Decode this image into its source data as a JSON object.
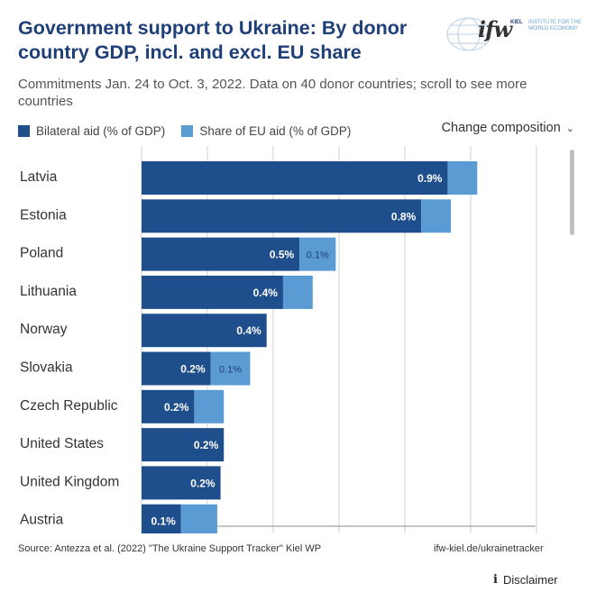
{
  "header": {
    "title": "Government support to Ukraine: By donor country GDP, incl. and excl. EU share",
    "subtitle": "Commitments Jan. 24 to Oct. 3, 2022. Data on 40 donor countries; scroll to see more countries",
    "logo_text": "ifw",
    "logo_kiel": "KIEL",
    "logo_institute": "INSTITUTE FOR THE WORLD ECONOMY"
  },
  "legend": [
    {
      "label": "Bilateral aid (% of GDP)",
      "color": "#1f4e8c"
    },
    {
      "label": "Share of EU aid (% of GDP)",
      "color": "#5a9bd3"
    }
  ],
  "controls": {
    "change_composition": "Change composition",
    "chevron": "⌄"
  },
  "footer": {
    "source": "Source: Antezza et al. (2022) \"The Ukraine Support Tracker\" Kiel WP",
    "url": "ifw-kiel.de/ukrainetracker",
    "disclaimer": "Disclaimer",
    "info_icon": "i"
  },
  "chart_data": {
    "type": "bar",
    "orientation": "horizontal",
    "stacked": true,
    "categories": [
      "Latvia",
      "Estonia",
      "Poland",
      "Lithuania",
      "Norway",
      "Slovakia",
      "Czech Republic",
      "United States",
      "United Kingdom",
      "Austria"
    ],
    "series": [
      {
        "name": "Bilateral aid (% of GDP)",
        "color": "#1f4e8c",
        "values": [
          0.93,
          0.85,
          0.48,
          0.43,
          0.38,
          0.21,
          0.16,
          0.25,
          0.24,
          0.12
        ],
        "labels": [
          "0.9%",
          "0.8%",
          "0.5%",
          "0.4%",
          "0.4%",
          "0.2%",
          "0.2%",
          "0.2%",
          "0.2%",
          "0.1%"
        ]
      },
      {
        "name": "Share of EU aid (% of GDP)",
        "color": "#5a9bd3",
        "values": [
          0.09,
          0.09,
          0.11,
          0.09,
          0.0,
          0.12,
          0.09,
          0.0,
          0.0,
          0.11
        ],
        "labels": [
          "",
          "",
          "0.1%",
          "",
          "",
          "0.1%",
          "",
          "",
          "",
          ""
        ]
      }
    ],
    "xlim": [
      0,
      1.2
    ],
    "grid": true
  }
}
